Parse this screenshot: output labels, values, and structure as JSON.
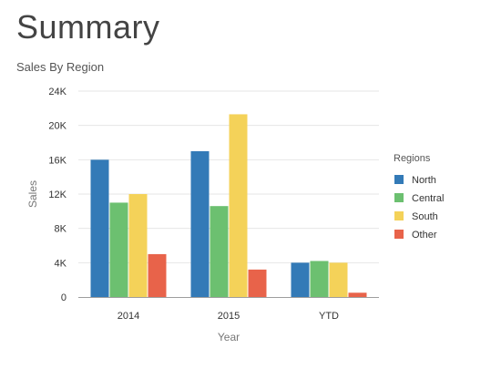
{
  "page": {
    "title": "Summary"
  },
  "chart_data": {
    "type": "bar",
    "title": "Sales By Region",
    "xlabel": "Year",
    "ylabel": "Sales",
    "categories": [
      "2014",
      "2015",
      "YTD"
    ],
    "series": [
      {
        "name": "North",
        "color": "#337ab7",
        "values": [
          16000,
          17000,
          4000
        ]
      },
      {
        "name": "Central",
        "color": "#6cc070",
        "values": [
          11000,
          10600,
          4200
        ]
      },
      {
        "name": "South",
        "color": "#f4d259",
        "values": [
          12000,
          21300,
          4000
        ]
      },
      {
        "name": "Other",
        "color": "#e8634a",
        "values": [
          5000,
          3200,
          500
        ]
      }
    ],
    "ylim": [
      0,
      24000
    ],
    "yticks": [
      0,
      4000,
      8000,
      12000,
      16000,
      20000,
      24000
    ],
    "ytick_labels": [
      "0",
      "4K",
      "8K",
      "12K",
      "16K",
      "20K",
      "24K"
    ],
    "grid": true,
    "legend": {
      "title": "Regions",
      "position": "right"
    }
  }
}
